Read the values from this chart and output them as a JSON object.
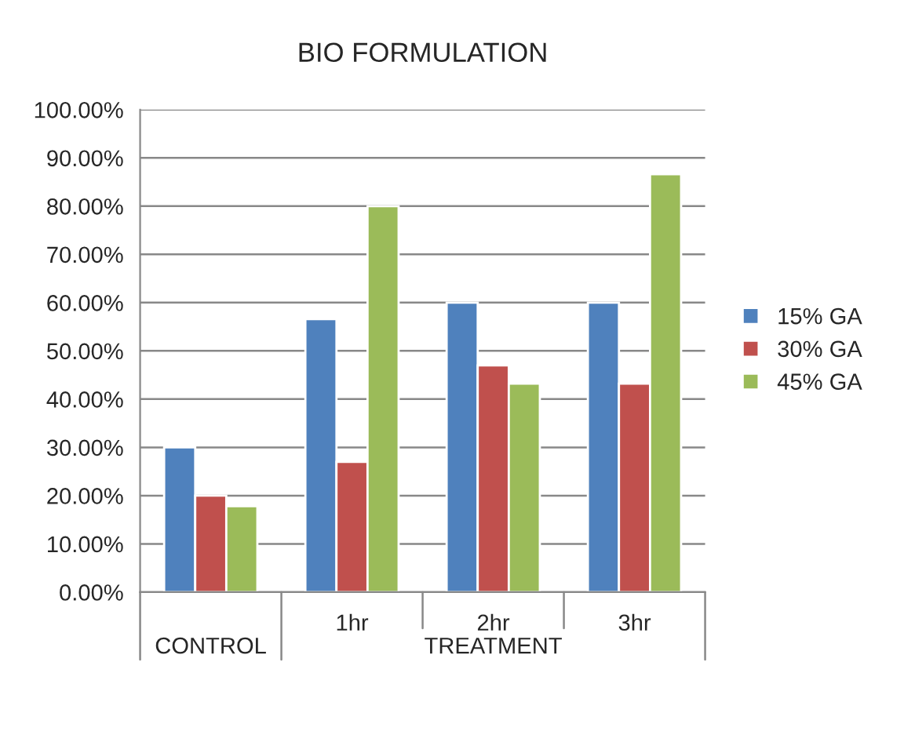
{
  "chart_data": {
    "type": "bar",
    "title": "BIO FORMULATION",
    "categories": [
      null,
      "1hr",
      "2hr",
      "3hr"
    ],
    "series": [
      {
        "name": "15% GA",
        "color": "#4f81bd",
        "values": [
          30,
          56.6,
          60,
          60
        ]
      },
      {
        "name": "30% GA",
        "color": "#c0504d",
        "values": [
          20,
          27,
          47,
          43.2
        ]
      },
      {
        "name": "45% GA",
        "color": "#9bbb59",
        "values": [
          17.8,
          80,
          43.2,
          86.6
        ]
      }
    ],
    "ylim": [
      0,
      100
    ],
    "yticks": [
      {
        "value": 0,
        "label": "0.00%"
      },
      {
        "value": 10,
        "label": "10.00%"
      },
      {
        "value": 20,
        "label": "20.00%"
      },
      {
        "value": 30,
        "label": "30.00%"
      },
      {
        "value": 40,
        "label": "40.00%"
      },
      {
        "value": 50,
        "label": "50.00%"
      },
      {
        "value": 60,
        "label": "60.00%"
      },
      {
        "value": 70,
        "label": "70.00%"
      },
      {
        "value": 80,
        "label": "80.00%"
      },
      {
        "value": 90,
        "label": "90.00%"
      },
      {
        "value": 100,
        "label": "100.00%"
      }
    ],
    "annotations": [
      "CONTROL",
      "TREATMENT"
    ],
    "grid": "y",
    "legend": "right"
  }
}
